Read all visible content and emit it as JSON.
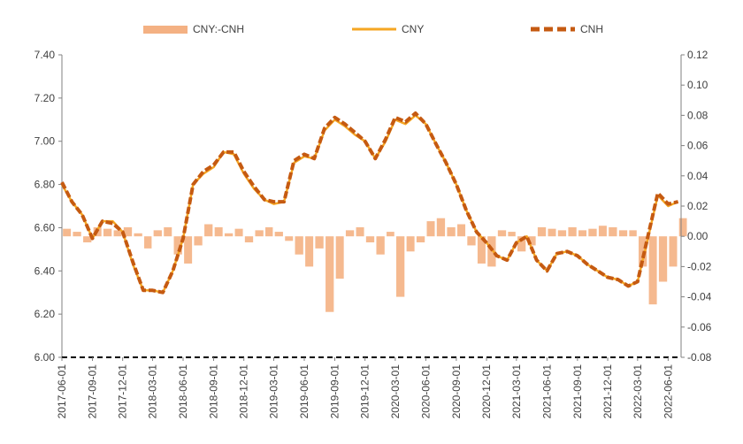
{
  "chart_data": {
    "type": "line",
    "title": "",
    "legend": {
      "placement": "top",
      "entries": [
        {
          "name": "CNY:-CNH",
          "style": "bar",
          "color": "#f4b183"
        },
        {
          "name": "CNY",
          "style": "solid-line",
          "color": "#f5a623"
        },
        {
          "name": "CNH",
          "style": "dashed-line",
          "color": "#c55a11"
        }
      ]
    },
    "x_ticks": [
      "2017-06-01",
      "2017-09-01",
      "2017-12-01",
      "2018-03-01",
      "2018-06-01",
      "2018-09-01",
      "2018-12-01",
      "2019-03-01",
      "2019-06-01",
      "2019-09-01",
      "2019-12-01",
      "2020-03-01",
      "2020-06-01",
      "2020-09-01",
      "2020-12-01",
      "2021-03-01",
      "2021-06-01",
      "2021-09-01",
      "2021-12-01",
      "2022-03-01",
      "2022-06-01"
    ],
    "y_left": {
      "min": 6.0,
      "max": 7.4,
      "ticks": [
        "6.00",
        "6.20",
        "6.40",
        "6.60",
        "6.80",
        "7.00",
        "7.20",
        "7.40"
      ]
    },
    "y_right": {
      "min": -0.08,
      "max": 0.12,
      "ticks": [
        "-0.08",
        "-0.06",
        "-0.04",
        "-0.02",
        "0.00",
        "0.02",
        "0.04",
        "0.06",
        "0.08",
        "0.10",
        "0.12"
      ]
    },
    "x": [
      "2017-06-01",
      "2017-07-01",
      "2017-08-01",
      "2017-09-01",
      "2017-10-01",
      "2017-11-01",
      "2017-12-01",
      "2018-01-01",
      "2018-02-01",
      "2018-03-01",
      "2018-04-01",
      "2018-05-01",
      "2018-06-01",
      "2018-07-01",
      "2018-08-01",
      "2018-09-01",
      "2018-10-01",
      "2018-11-01",
      "2018-12-01",
      "2019-01-01",
      "2019-02-01",
      "2019-03-01",
      "2019-04-01",
      "2019-05-01",
      "2019-06-01",
      "2019-07-01",
      "2019-08-01",
      "2019-09-01",
      "2019-10-01",
      "2019-11-01",
      "2019-12-01",
      "2020-01-01",
      "2020-02-01",
      "2020-03-01",
      "2020-04-01",
      "2020-05-01",
      "2020-06-01",
      "2020-07-01",
      "2020-08-01",
      "2020-09-01",
      "2020-10-01",
      "2020-11-01",
      "2020-12-01",
      "2021-01-01",
      "2021-02-01",
      "2021-03-01",
      "2021-04-01",
      "2021-05-01",
      "2021-06-01",
      "2021-07-01",
      "2021-08-01",
      "2021-09-01",
      "2021-10-01",
      "2021-11-01",
      "2021-12-01",
      "2022-01-01",
      "2022-02-01",
      "2022-03-01",
      "2022-04-01",
      "2022-05-01",
      "2022-06-01",
      "2022-07-01"
    ],
    "series": [
      {
        "name": "CNY",
        "axis": "left",
        "values": [
          6.8,
          6.72,
          6.66,
          6.55,
          6.63,
          6.63,
          6.58,
          6.43,
          6.31,
          6.31,
          6.3,
          6.4,
          6.55,
          6.8,
          6.85,
          6.88,
          6.95,
          6.94,
          6.85,
          6.78,
          6.73,
          6.71,
          6.72,
          6.9,
          6.93,
          6.92,
          7.05,
          7.1,
          7.07,
          7.03,
          7.0,
          6.92,
          7.0,
          7.1,
          7.08,
          7.12,
          7.08,
          6.99,
          6.9,
          6.8,
          6.68,
          6.58,
          6.53,
          6.47,
          6.45,
          6.53,
          6.56,
          6.45,
          6.4,
          6.48,
          6.49,
          6.47,
          6.43,
          6.4,
          6.37,
          6.36,
          6.33,
          6.35,
          6.55,
          6.75,
          6.7,
          6.72
        ]
      },
      {
        "name": "CNH",
        "axis": "left",
        "values": [
          6.81,
          6.72,
          6.66,
          6.55,
          6.63,
          6.62,
          6.58,
          6.44,
          6.31,
          6.31,
          6.3,
          6.4,
          6.55,
          6.8,
          6.86,
          6.89,
          6.95,
          6.95,
          6.86,
          6.79,
          6.73,
          6.72,
          6.72,
          6.91,
          6.94,
          6.92,
          7.06,
          7.11,
          7.08,
          7.04,
          7.0,
          6.92,
          7.01,
          7.11,
          7.09,
          7.13,
          7.08,
          6.99,
          6.9,
          6.8,
          6.68,
          6.58,
          6.53,
          6.47,
          6.45,
          6.53,
          6.56,
          6.45,
          6.4,
          6.48,
          6.49,
          6.47,
          6.43,
          6.4,
          6.37,
          6.36,
          6.33,
          6.35,
          6.56,
          6.76,
          6.71,
          6.72
        ]
      },
      {
        "name": "CNY:-CNH",
        "axis": "right",
        "type": "bar",
        "values": [
          0.005,
          0.003,
          -0.004,
          0.006,
          0.005,
          0.004,
          0.006,
          0.002,
          -0.008,
          0.004,
          0.006,
          -0.012,
          -0.018,
          -0.006,
          0.008,
          0.006,
          0.002,
          0.005,
          -0.004,
          0.004,
          0.006,
          0.003,
          -0.003,
          -0.012,
          -0.02,
          -0.008,
          -0.05,
          -0.028,
          0.004,
          0.006,
          -0.004,
          -0.012,
          0.003,
          -0.04,
          -0.01,
          -0.004,
          0.01,
          0.012,
          0.006,
          0.008,
          -0.006,
          -0.018,
          -0.02,
          0.004,
          0.003,
          -0.01,
          -0.006,
          0.006,
          0.005,
          0.004,
          0.006,
          0.004,
          0.005,
          0.007,
          0.006,
          0.004,
          0.004,
          -0.02,
          -0.045,
          -0.03,
          -0.02,
          0.012
        ]
      }
    ],
    "grid": false
  }
}
